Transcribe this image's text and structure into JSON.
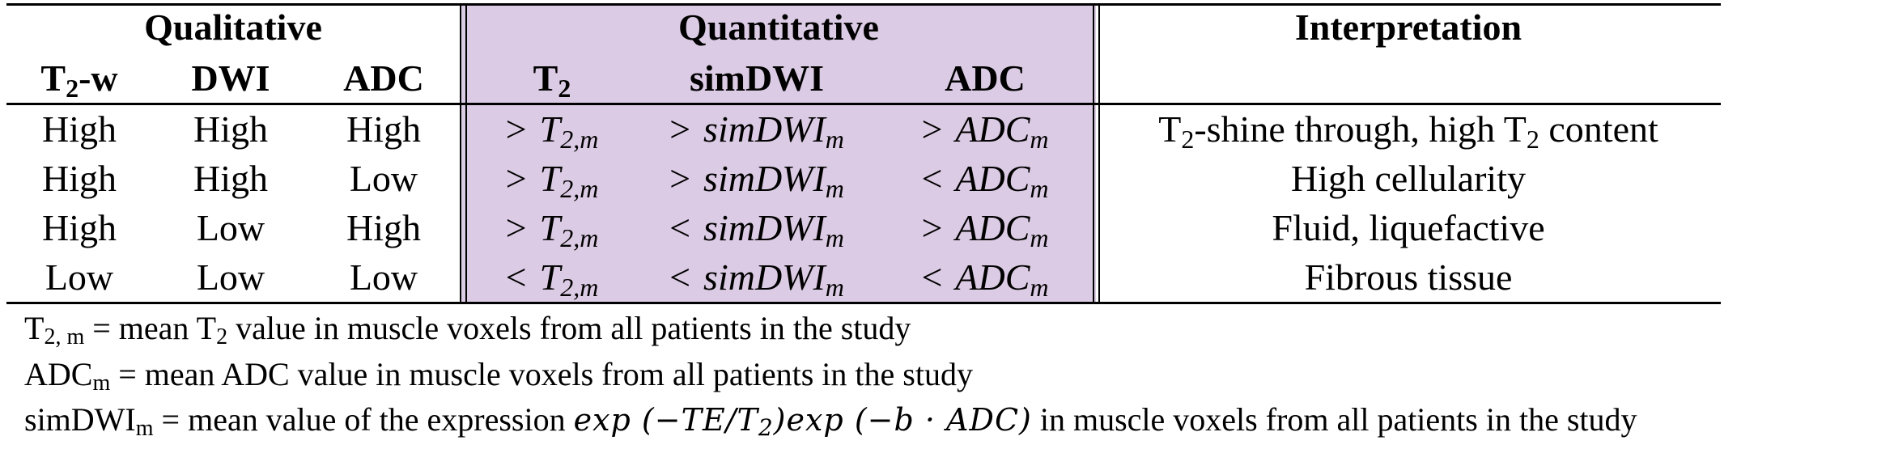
{
  "groups": {
    "qualitative": "Qualitative",
    "quantitative": "Quantitative",
    "interpretation": "Interpretation"
  },
  "columns": {
    "qual_t2w_main": "T",
    "qual_t2w_sub": "2",
    "qual_t2w_suffix": "-w",
    "qual_dwi": "DWI",
    "qual_adc": "ADC",
    "quant_t2_main": "T",
    "quant_t2_sub": "2",
    "quant_simdwi": "simDWI",
    "quant_adc": "ADC"
  },
  "rows": [
    {
      "t2w": "High",
      "dwi": "High",
      "adc": "High",
      "q_t2_op": ">",
      "q_simdwi_op": ">",
      "q_adc_op": ">",
      "interp_pre": "T",
      "interp_sub": "2",
      "interp_post": "-shine through, high T",
      "interp_sub2": "2",
      "interp_post2": " content"
    },
    {
      "t2w": "High",
      "dwi": "High",
      "adc": "Low",
      "q_t2_op": ">",
      "q_simdwi_op": ">",
      "q_adc_op": "<",
      "interp": "High cellularity"
    },
    {
      "t2w": "High",
      "dwi": "Low",
      "adc": "High",
      "q_t2_op": ">",
      "q_simdwi_op": "<",
      "q_adc_op": ">",
      "interp": "Fluid, liquefactive"
    },
    {
      "t2w": "Low",
      "dwi": "Low",
      "adc": "Low",
      "q_t2_op": "<",
      "q_simdwi_op": "<",
      "q_adc_op": "<",
      "interp": "Fibrous tissue"
    }
  ],
  "quant_terms": {
    "t2_var": "T",
    "t2_sub": "2,m",
    "simdwi_var": "simDWI",
    "simdwi_sub": "m",
    "adc_var": "ADC",
    "adc_sub": "m"
  },
  "notes": {
    "n1_main": "T",
    "n1_sub": "2, m",
    "n1_text": " = mean T",
    "n1_sub2": "2",
    "n1_text2": " value in muscle voxels from all patients in the study",
    "n2_main": "ADC",
    "n2_sub": "m",
    "n2_text": " = mean ADC value in muscle voxels from all patients in the study",
    "n3_main": "simDWI",
    "n3_sub": "m",
    "n3_text": " = mean value of the expression ",
    "n3_math_a": "exp (−TE/T",
    "n3_math_sub": "2",
    "n3_math_b": ")exp (−b · ADC)",
    "n3_text2": " in muscle voxels from all patients in the study"
  }
}
